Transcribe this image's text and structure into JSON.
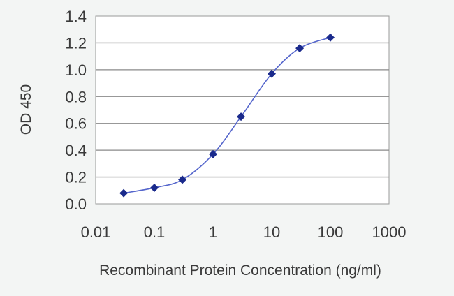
{
  "chart_data": {
    "type": "line",
    "title": "",
    "xlabel": "Recombinant Protein Concentration (ng/ml)",
    "ylabel": "OD 450",
    "xscale": "log",
    "xlim": [
      0.01,
      1000
    ],
    "ylim": [
      0.0,
      1.4
    ],
    "x_tick_labels": [
      "0.01",
      "0.1",
      "1",
      "10",
      "100",
      "1000"
    ],
    "y_tick_labels": [
      "0.0",
      "0.2",
      "0.4",
      "0.6",
      "0.8",
      "1.0",
      "1.2",
      "1.4"
    ],
    "grid": "horizontal",
    "legend": "none",
    "series": [
      {
        "x": [
          0.03,
          0.1,
          0.3,
          1,
          3,
          10,
          30,
          100
        ],
        "y": [
          0.08,
          0.12,
          0.18,
          0.37,
          0.65,
          0.97,
          1.16,
          1.24
        ],
        "color": "#1a2a8c",
        "marker": "diamond"
      }
    ],
    "colors": {
      "plot_background": "#ffffff",
      "gridline": "#8a8a8a",
      "line": "#5566cc",
      "marker": "#1a2a8c"
    }
  }
}
